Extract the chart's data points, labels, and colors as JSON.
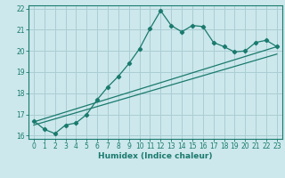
{
  "xlabel": "Humidex (Indice chaleur)",
  "background_color": "#cce8ec",
  "grid_color": "#aacdd4",
  "line_color": "#1a7a6e",
  "xlim": [
    -0.5,
    23.5
  ],
  "ylim": [
    15.85,
    22.15
  ],
  "yticks": [
    16,
    17,
    18,
    19,
    20,
    21,
    22
  ],
  "xticks": [
    0,
    1,
    2,
    3,
    4,
    5,
    6,
    7,
    8,
    9,
    10,
    11,
    12,
    13,
    14,
    15,
    16,
    17,
    18,
    19,
    20,
    21,
    22,
    23
  ],
  "line1_x": [
    0,
    1,
    2,
    3,
    4,
    5,
    6,
    7,
    8,
    9,
    10,
    11,
    12,
    13,
    14,
    15,
    16,
    17,
    18,
    19,
    20,
    21,
    22,
    23
  ],
  "line1_y": [
    16.7,
    16.3,
    16.1,
    16.5,
    16.6,
    17.0,
    17.7,
    18.3,
    18.8,
    19.4,
    20.1,
    21.05,
    21.9,
    21.2,
    20.9,
    21.2,
    21.15,
    20.4,
    20.2,
    19.95,
    20.0,
    20.4,
    20.5,
    20.2
  ],
  "line2_x": [
    0,
    23
  ],
  "line2_y": [
    16.65,
    20.2
  ],
  "line3_x": [
    0,
    23
  ],
  "line3_y": [
    16.5,
    19.85
  ]
}
